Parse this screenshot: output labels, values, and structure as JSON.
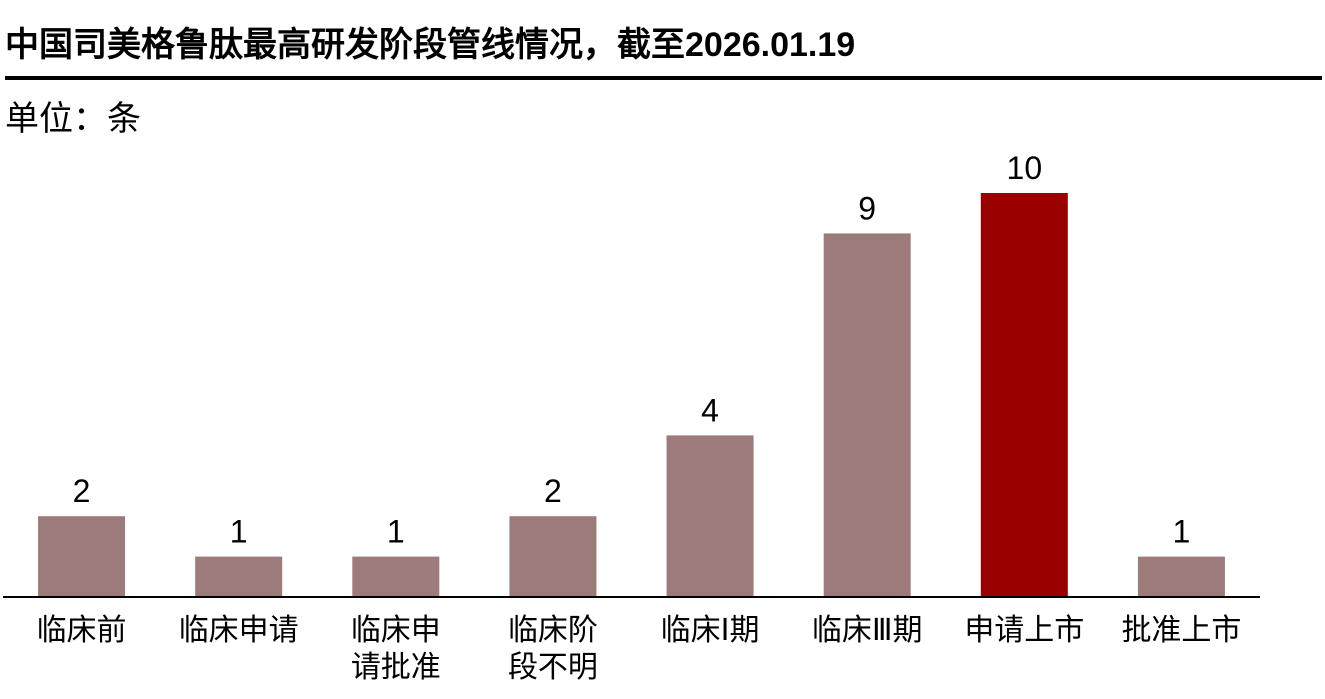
{
  "chart_data": {
    "type": "bar",
    "title": "中国司美格鲁肽最高研发阶段管线情况，截至2026.01.19",
    "unit_label": "单位：条",
    "categories": [
      "临床前",
      "临床申请",
      "临床申请批准",
      "临床阶段不明",
      "临床Ⅰ期",
      "临床Ⅲ期",
      "申请上市",
      "批准上市"
    ],
    "values": [
      2,
      1,
      1,
      2,
      4,
      9,
      10,
      1
    ],
    "colors": [
      "#9e7b7b",
      "#9e7b7b",
      "#9e7b7b",
      "#9e7b7b",
      "#9e7b7b",
      "#9e7b7b",
      "#990000",
      "#9e7b7b"
    ],
    "ylim": [
      0,
      10
    ]
  }
}
